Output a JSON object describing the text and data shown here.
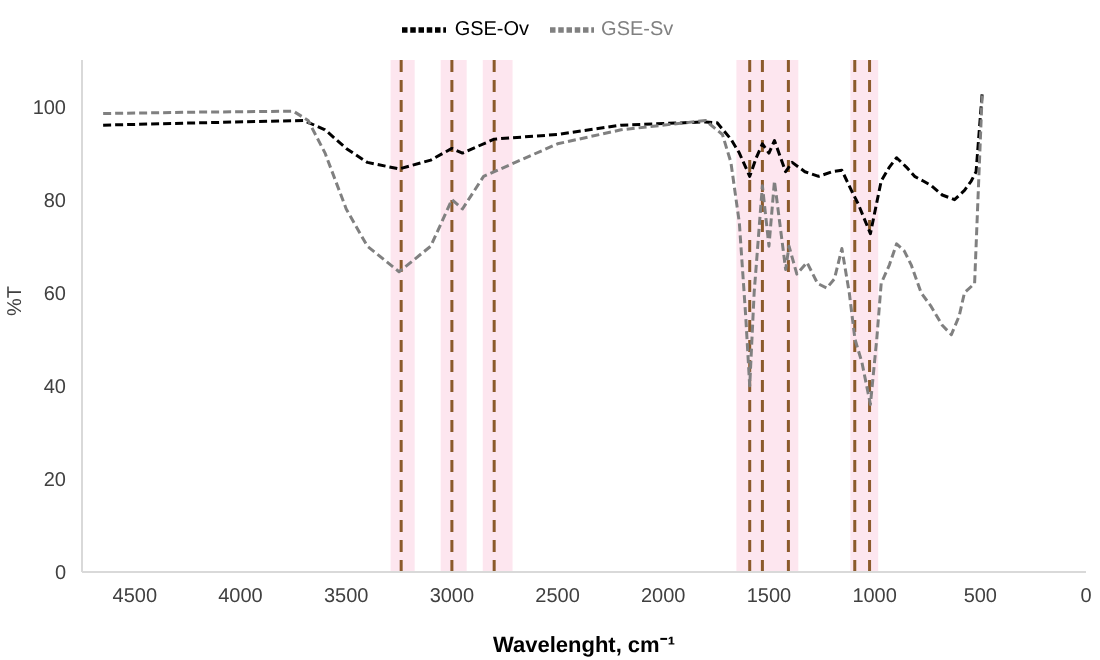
{
  "chart_data": {
    "type": "line",
    "xlabel": "Wavelenght, cm⁻¹",
    "ylabel": "%T",
    "xlim": [
      4750,
      0
    ],
    "xticks": [
      4500,
      4000,
      3500,
      3000,
      2500,
      2000,
      1500,
      1000,
      500,
      0
    ],
    "ylim": [
      0,
      110
    ],
    "yticks": [
      0,
      20,
      40,
      60,
      80,
      100
    ],
    "grid": false,
    "legend": "top",
    "marker": "none",
    "line_style": "dashed",
    "series": [
      {
        "name": "GSE-Ov",
        "color": "#000000",
        "x": [
          4650,
          4200,
          3700,
          3600,
          3500,
          3400,
          3250,
          3100,
          3000,
          2950,
          2800,
          2500,
          2200,
          1800,
          1745,
          1680,
          1640,
          1591,
          1560,
          1531,
          1500,
          1474,
          1421,
          1390,
          1330,
          1265,
          1200,
          1155,
          1110,
          1077,
          1020,
          969,
          930,
          896,
          850,
          811,
          770,
          732,
          680,
          622,
          575,
          543,
          520,
          491
        ],
        "values": [
          96,
          96.5,
          97,
          95,
          91,
          88,
          86.6,
          88.5,
          91,
          90,
          93,
          94,
          96,
          96.7,
          96.5,
          93,
          90,
          85,
          89,
          92,
          90,
          92.7,
          86,
          88,
          86,
          85,
          86,
          86.3,
          82,
          79,
          72.7,
          84,
          87,
          89,
          87,
          85,
          84,
          83,
          81,
          80,
          82,
          84,
          86,
          103
        ]
      },
      {
        "name": "GSE-Sv",
        "color": "#808080",
        "x": [
          4650,
          4200,
          3750,
          3680,
          3600,
          3500,
          3400,
          3250,
          3100,
          3000,
          2950,
          2850,
          2700,
          2500,
          2200,
          1800,
          1720,
          1680,
          1640,
          1610,
          1591,
          1570,
          1531,
          1500,
          1474,
          1421,
          1405,
          1368,
          1320,
          1270,
          1226,
          1190,
          1155,
          1120,
          1093,
          1060,
          1020,
          990,
          969,
          930,
          896,
          860,
          827,
          780,
          732,
          680,
          637,
          600,
          575,
          527,
          491
        ],
        "values": [
          98.5,
          98.8,
          99,
          97,
          90,
          78,
          70,
          64.5,
          70,
          80,
          78,
          85,
          88,
          92,
          95,
          97,
          94,
          88,
          75,
          55,
          40,
          60,
          83,
          70,
          84,
          65,
          70,
          64,
          66.5,
          62,
          61,
          63,
          69.5,
          60,
          50,
          45,
          36,
          50,
          62,
          66,
          70.5,
          69,
          66,
          60,
          57,
          53,
          51,
          55,
          60,
          62,
          103
        ]
      }
    ],
    "ref_lines": [
      {
        "axis": "x",
        "value": 3240,
        "color": "#8b5a2b",
        "line_style": "dashed"
      },
      {
        "axis": "x",
        "value": 3000,
        "color": "#8b5a2b",
        "line_style": "dashed"
      },
      {
        "axis": "x",
        "value": 2800,
        "color": "#8b5a2b",
        "line_style": "dashed"
      },
      {
        "axis": "x",
        "value": 1591,
        "color": "#8b5a2b",
        "line_style": "dashed"
      },
      {
        "axis": "x",
        "value": 1531,
        "color": "#8b5a2b",
        "line_style": "dashed"
      },
      {
        "axis": "x",
        "value": 1408,
        "color": "#8b5a2b",
        "line_style": "dashed"
      },
      {
        "axis": "x",
        "value": 1094,
        "color": "#8b5a2b",
        "line_style": "dashed"
      },
      {
        "axis": "x",
        "value": 1024,
        "color": "#8b5a2b",
        "line_style": "dashed"
      }
    ],
    "bands": [
      {
        "axis": "x",
        "from": 3290,
        "to": 3176,
        "color": "#fde6ef"
      },
      {
        "axis": "x",
        "from": 3053,
        "to": 2930,
        "color": "#fde6ef"
      },
      {
        "axis": "x",
        "from": 2854,
        "to": 2713,
        "color": "#fde6ef"
      },
      {
        "axis": "x",
        "from": 1654,
        "to": 1361,
        "color": "#fde6ef"
      },
      {
        "axis": "x",
        "from": 1115,
        "to": 983,
        "color": "#fde6ef"
      }
    ]
  }
}
